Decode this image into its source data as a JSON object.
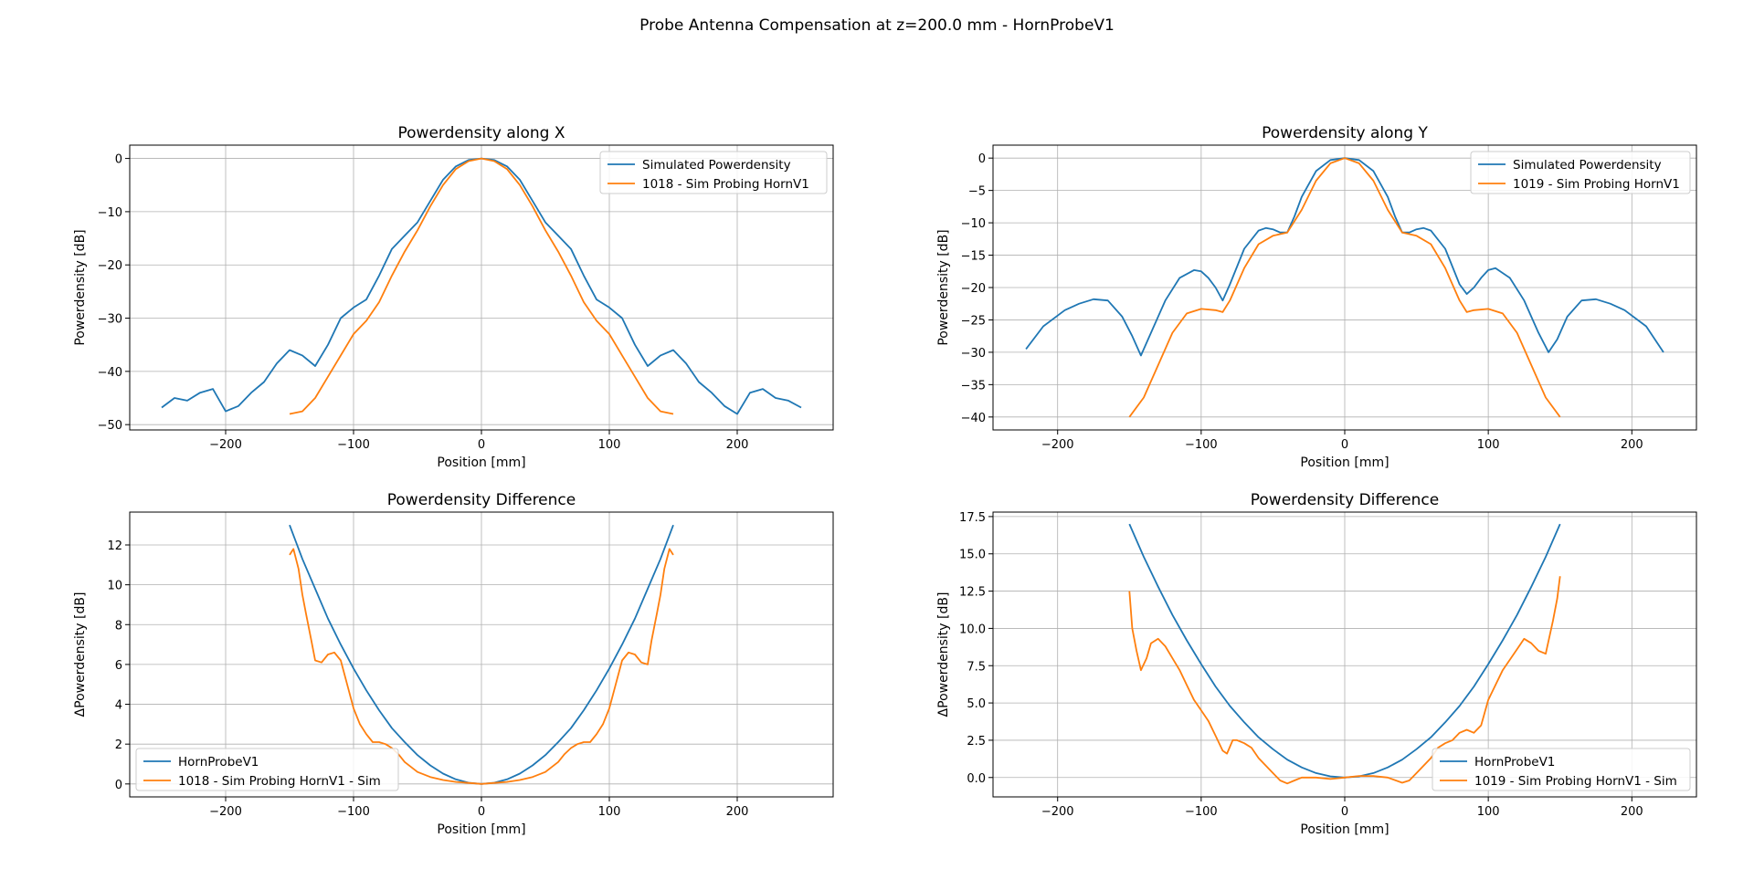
{
  "figure": {
    "suptitle": "Probe Antenna Compensation at z=200.0 mm - HornProbeV1"
  },
  "colors": {
    "series_1": "#1f77b4",
    "series_2": "#ff7f0e",
    "grid": "#b0b0b0"
  },
  "chart_data": [
    {
      "id": "px",
      "type": "line",
      "title": "Powerdensity along X",
      "xlabel": "Position [mm]",
      "ylabel": "Powerdensity [dB]",
      "xlim": [
        -275,
        275
      ],
      "ylim": [
        -51,
        2.5
      ],
      "xticks": [
        -200,
        -100,
        0,
        100,
        200
      ],
      "yticks": [
        0,
        -10,
        -20,
        -30,
        -40,
        -50
      ],
      "grid": true,
      "legend": "top-right",
      "series": [
        {
          "name": "Simulated Powerdensity",
          "color": "#1f77b4",
          "x": [
            -250,
            -240,
            -230,
            -220,
            -210,
            -200,
            -190,
            -180,
            -170,
            -160,
            -150,
            -140,
            -130,
            -120,
            -110,
            -100,
            -90,
            -80,
            -70,
            -60,
            -50,
            -40,
            -30,
            -20,
            -10,
            0,
            10,
            20,
            30,
            40,
            50,
            60,
            70,
            80,
            90,
            100,
            110,
            120,
            130,
            140,
            150,
            160,
            170,
            180,
            190,
            200,
            210,
            220,
            230,
            240,
            250
          ],
          "y": [
            -46.8,
            -45,
            -45.5,
            -44,
            -43.3,
            -47.5,
            -46.5,
            -44,
            -42,
            -38.5,
            -36,
            -37,
            -39,
            -35,
            -30,
            -28,
            -26.5,
            -22,
            -17,
            -14.5,
            -12,
            -8,
            -4,
            -1.5,
            -0.3,
            0,
            -0.3,
            -1.5,
            -4,
            -8,
            -12,
            -14.5,
            -17,
            -22,
            -26.5,
            -28,
            -30,
            -35,
            -39,
            -37,
            -36,
            -38.5,
            -42,
            -44,
            -46.5,
            -48,
            -44,
            -43.3,
            -45,
            -45.5,
            -46.8
          ]
        },
        {
          "name": "1018 - Sim Probing HornV1",
          "color": "#ff7f0e",
          "x": [
            -150,
            -140,
            -130,
            -120,
            -110,
            -100,
            -90,
            -80,
            -70,
            -60,
            -50,
            -40,
            -30,
            -20,
            -10,
            0,
            10,
            20,
            30,
            40,
            50,
            60,
            70,
            80,
            90,
            100,
            110,
            120,
            130,
            140,
            150
          ],
          "y": [
            -48,
            -47.5,
            -45,
            -41,
            -37,
            -33,
            -30.5,
            -27,
            -22,
            -17.5,
            -13.5,
            -9,
            -5,
            -2,
            -0.5,
            0,
            -0.5,
            -2,
            -5,
            -9,
            -13.5,
            -17.5,
            -22,
            -27,
            -30.5,
            -33,
            -37,
            -41,
            -45,
            -47.5,
            -48
          ]
        }
      ]
    },
    {
      "id": "py",
      "type": "line",
      "title": "Powerdensity along Y",
      "xlabel": "Position [mm]",
      "ylabel": "Powerdensity [dB]",
      "xlim": [
        -245,
        245
      ],
      "ylim": [
        -42,
        2
      ],
      "xticks": [
        -200,
        -100,
        0,
        100,
        200
      ],
      "yticks": [
        0,
        -5,
        -10,
        -15,
        -20,
        -25,
        -30,
        -35,
        -40
      ],
      "grid": true,
      "legend": "top-right",
      "series": [
        {
          "name": "Simulated Powerdensity",
          "color": "#1f77b4",
          "x": [
            -222,
            -210,
            -195,
            -185,
            -175,
            -165,
            -155,
            -148,
            -142,
            -135,
            -125,
            -115,
            -105,
            -100,
            -95,
            -90,
            -85,
            -80,
            -70,
            -60,
            -55,
            -50,
            -45,
            -40,
            -35,
            -30,
            -20,
            -10,
            0,
            10,
            20,
            30,
            35,
            40,
            45,
            50,
            55,
            60,
            70,
            80,
            85,
            90,
            95,
            100,
            105,
            115,
            125,
            135,
            142,
            148,
            155,
            165,
            175,
            185,
            195,
            210,
            222
          ],
          "y": [
            -29.5,
            -26,
            -23.5,
            -22.5,
            -21.8,
            -22,
            -24.5,
            -27.5,
            -30.5,
            -27,
            -22,
            -18.5,
            -17.3,
            -17.5,
            -18.5,
            -20,
            -22,
            -19.5,
            -14,
            -11.2,
            -10.8,
            -11,
            -11.5,
            -11.5,
            -9,
            -6,
            -2,
            -0.3,
            0,
            -0.3,
            -2,
            -6,
            -9,
            -11.5,
            -11.5,
            -11,
            -10.8,
            -11.2,
            -14,
            -19.5,
            -21,
            -20,
            -18.5,
            -17.3,
            -17,
            -18.5,
            -22,
            -27,
            -30,
            -28,
            -24.5,
            -22,
            -21.8,
            -22.5,
            -23.5,
            -26,
            -30
          ]
        },
        {
          "name": "1019 - Sim Probing HornV1",
          "color": "#ff7f0e",
          "x": [
            -150,
            -140,
            -130,
            -120,
            -110,
            -100,
            -90,
            -85,
            -80,
            -70,
            -60,
            -50,
            -40,
            -30,
            -20,
            -10,
            0,
            10,
            20,
            30,
            40,
            50,
            60,
            70,
            80,
            85,
            90,
            100,
            110,
            120,
            130,
            140,
            150
          ],
          "y": [
            -40,
            -37,
            -32,
            -27,
            -24,
            -23.3,
            -23.5,
            -23.8,
            -22,
            -17,
            -13.3,
            -12,
            -11.5,
            -8,
            -3.5,
            -0.8,
            0,
            -0.8,
            -3.5,
            -8,
            -11.5,
            -12,
            -13.3,
            -17,
            -22,
            -23.8,
            -23.5,
            -23.3,
            -24,
            -27,
            -32,
            -37,
            -40
          ]
        }
      ]
    },
    {
      "id": "dx",
      "type": "line",
      "title": "Powerdensity Difference",
      "xlabel": "Position [mm]",
      "ylabel": "ΔPowerdensity [dB]",
      "xlim": [
        -275,
        275
      ],
      "ylim": [
        -0.65,
        13.65
      ],
      "xticks": [
        -200,
        -100,
        0,
        100,
        200
      ],
      "yticks": [
        0,
        2,
        4,
        6,
        8,
        10,
        12
      ],
      "grid": true,
      "legend": "bottom-left",
      "series": [
        {
          "name": "HornProbeV1",
          "color": "#1f77b4",
          "x": [
            -150,
            -140,
            -130,
            -120,
            -110,
            -100,
            -90,
            -80,
            -70,
            -60,
            -50,
            -40,
            -30,
            -20,
            -10,
            0,
            10,
            20,
            30,
            40,
            50,
            60,
            70,
            80,
            90,
            100,
            110,
            120,
            130,
            140,
            150
          ],
          "y": [
            13,
            11.3,
            9.8,
            8.3,
            7,
            5.8,
            4.7,
            3.7,
            2.8,
            2.1,
            1.45,
            0.93,
            0.52,
            0.23,
            0.06,
            0,
            0.06,
            0.23,
            0.52,
            0.93,
            1.45,
            2.1,
            2.8,
            3.7,
            4.7,
            5.8,
            7,
            8.3,
            9.8,
            11.3,
            13
          ]
        },
        {
          "name": "1018 - Sim Probing HornV1 - Sim",
          "color": "#ff7f0e",
          "x": [
            -150,
            -147,
            -143,
            -140,
            -137,
            -133,
            -130,
            -125,
            -120,
            -115,
            -110,
            -105,
            -100,
            -95,
            -90,
            -85,
            -80,
            -75,
            -70,
            -65,
            -60,
            -50,
            -40,
            -30,
            -20,
            -10,
            0,
            10,
            20,
            30,
            40,
            50,
            60,
            65,
            70,
            75,
            80,
            85,
            90,
            95,
            100,
            105,
            110,
            115,
            120,
            125,
            130,
            133,
            137,
            140,
            143,
            147,
            150
          ],
          "y": [
            11.5,
            11.8,
            10.8,
            9.5,
            8.5,
            7.2,
            6.2,
            6.1,
            6.5,
            6.6,
            6.2,
            5,
            3.8,
            3,
            2.5,
            2.1,
            2.1,
            2,
            1.8,
            1.5,
            1.1,
            0.6,
            0.35,
            0.2,
            0.1,
            0.05,
            0,
            0.05,
            0.1,
            0.2,
            0.35,
            0.6,
            1.1,
            1.5,
            1.8,
            2,
            2.1,
            2.1,
            2.5,
            3,
            3.8,
            5,
            6.2,
            6.6,
            6.5,
            6.1,
            6,
            7.2,
            8.5,
            9.5,
            10.8,
            11.8,
            11.5
          ]
        }
      ]
    },
    {
      "id": "dy",
      "type": "line",
      "title": "Powerdensity Difference",
      "xlabel": "Position [mm]",
      "ylabel": "ΔPowerdensity [dB]",
      "xlim": [
        -245,
        245
      ],
      "ylim": [
        -1.3,
        17.8
      ],
      "xticks": [
        -200,
        -100,
        0,
        100,
        200
      ],
      "yticks": [
        0.0,
        2.5,
        5.0,
        7.5,
        10.0,
        12.5,
        15.0,
        17.5
      ],
      "grid": true,
      "legend": "bottom-right",
      "series": [
        {
          "name": "HornProbeV1",
          "color": "#1f77b4",
          "x": [
            -150,
            -140,
            -130,
            -120,
            -110,
            -100,
            -90,
            -80,
            -70,
            -60,
            -50,
            -40,
            -30,
            -20,
            -10,
            0,
            10,
            20,
            30,
            40,
            50,
            60,
            70,
            80,
            90,
            100,
            110,
            120,
            130,
            140,
            150
          ],
          "y": [
            17,
            14.8,
            12.8,
            10.9,
            9.2,
            7.6,
            6.1,
            4.8,
            3.7,
            2.7,
            1.9,
            1.2,
            0.68,
            0.3,
            0.08,
            0,
            0.08,
            0.3,
            0.68,
            1.2,
            1.9,
            2.7,
            3.7,
            4.8,
            6.1,
            7.6,
            9.2,
            10.9,
            12.8,
            14.8,
            17
          ]
        },
        {
          "name": "1019 - Sim Probing HornV1 - Sim",
          "color": "#ff7f0e",
          "x": [
            -150,
            -148,
            -145,
            -142,
            -138,
            -135,
            -130,
            -125,
            -120,
            -115,
            -110,
            -105,
            -100,
            -95,
            -90,
            -85,
            -82,
            -78,
            -75,
            -70,
            -65,
            -60,
            -55,
            -50,
            -45,
            -40,
            -35,
            -30,
            -20,
            -10,
            0,
            10,
            20,
            30,
            40,
            45,
            50,
            55,
            60,
            65,
            70,
            75,
            80,
            85,
            90,
            95,
            100,
            110,
            120,
            125,
            130,
            135,
            140,
            145,
            148,
            150
          ],
          "y": [
            12.5,
            10,
            8.5,
            7.2,
            8,
            9,
            9.3,
            8.8,
            8,
            7.2,
            6.2,
            5.2,
            4.5,
            3.8,
            2.8,
            1.8,
            1.6,
            2.5,
            2.5,
            2.3,
            2,
            1.3,
            0.8,
            0.3,
            -0.2,
            -0.4,
            -0.2,
            0,
            0,
            -0.1,
            0,
            0.1,
            0.1,
            0,
            -0.35,
            -0.2,
            0.3,
            0.8,
            1.3,
            2,
            2.3,
            2.5,
            3,
            3.2,
            3,
            3.5,
            5.2,
            7.2,
            8.6,
            9.3,
            9,
            8.5,
            8.3,
            10.5,
            12,
            13.5
          ]
        }
      ]
    }
  ]
}
